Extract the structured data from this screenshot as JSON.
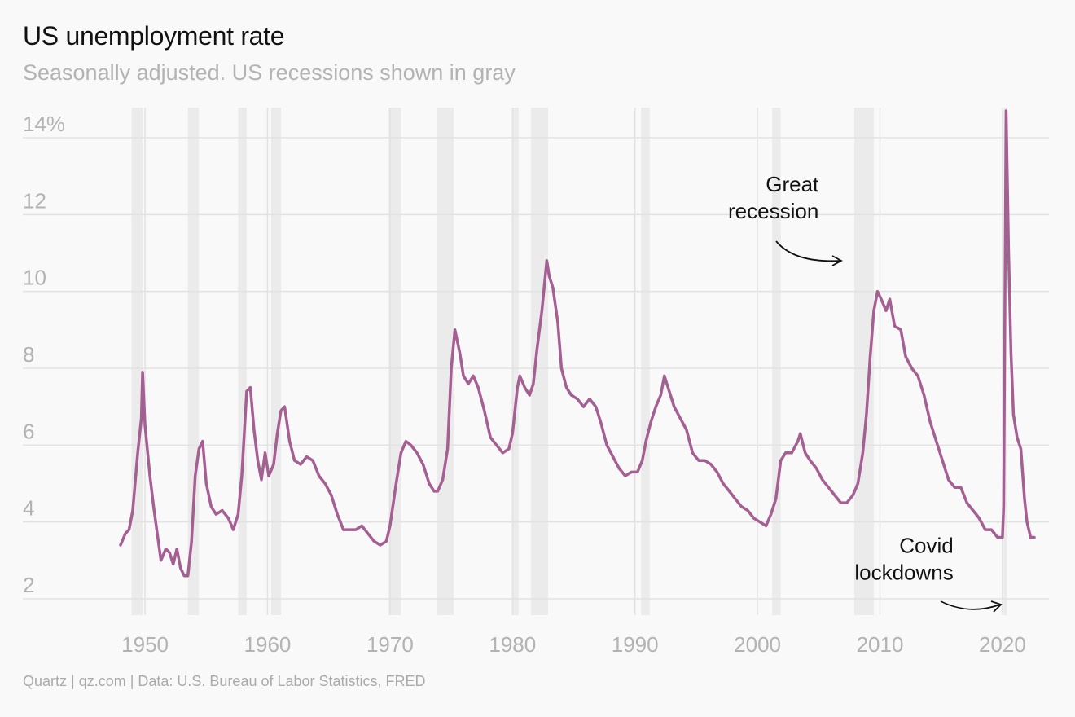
{
  "chart_data": {
    "type": "line",
    "title": "US unemployment rate",
    "subtitle": "Seasonally adjusted. US recessions shown in gray",
    "source": "Quartz | qz.com | Data: U.S. Bureau of Labor Statistics, FRED",
    "xlabel": "",
    "ylabel": "",
    "xlim": [
      1948,
      2022.6
    ],
    "ylim": [
      2,
      14
    ],
    "x_ticks": [
      1950,
      1960,
      1970,
      1980,
      1990,
      2000,
      2010,
      2020
    ],
    "y_ticks": [
      {
        "value": 2,
        "label": "2"
      },
      {
        "value": 4,
        "label": "4"
      },
      {
        "value": 6,
        "label": "6"
      },
      {
        "value": 8,
        "label": "8"
      },
      {
        "value": 10,
        "label": "10"
      },
      {
        "value": 12,
        "label": "12"
      },
      {
        "value": 14,
        "label": "14%"
      }
    ],
    "grid": true,
    "line_color": "#a55f93",
    "recession_color": "#ebebeb",
    "recessions": [
      [
        1948.9,
        1949.8
      ],
      [
        1953.5,
        1954.4
      ],
      [
        1957.6,
        1958.3
      ],
      [
        1960.3,
        1961.1
      ],
      [
        1969.9,
        1970.9
      ],
      [
        1973.8,
        1975.2
      ],
      [
        1980.0,
        1980.5
      ],
      [
        1981.5,
        1982.9
      ],
      [
        1990.5,
        1991.2
      ],
      [
        2001.2,
        2001.9
      ],
      [
        2007.9,
        2009.5
      ],
      [
        2020.1,
        2020.3
      ]
    ],
    "series": [
      {
        "points": [
          [
            1948.0,
            3.4
          ],
          [
            1948.4,
            3.7
          ],
          [
            1948.7,
            3.8
          ],
          [
            1949.0,
            4.3
          ],
          [
            1949.4,
            5.8
          ],
          [
            1949.7,
            6.7
          ],
          [
            1949.8,
            7.9
          ],
          [
            1950.0,
            6.5
          ],
          [
            1950.4,
            5.2
          ],
          [
            1950.7,
            4.4
          ],
          [
            1951.0,
            3.7
          ],
          [
            1951.3,
            3.0
          ],
          [
            1951.7,
            3.3
          ],
          [
            1952.0,
            3.2
          ],
          [
            1952.3,
            2.9
          ],
          [
            1952.6,
            3.3
          ],
          [
            1952.9,
            2.8
          ],
          [
            1953.2,
            2.6
          ],
          [
            1953.5,
            2.6
          ],
          [
            1953.8,
            3.5
          ],
          [
            1954.1,
            5.2
          ],
          [
            1954.4,
            5.9
          ],
          [
            1954.7,
            6.1
          ],
          [
            1955.0,
            5.0
          ],
          [
            1955.4,
            4.4
          ],
          [
            1955.8,
            4.2
          ],
          [
            1956.3,
            4.3
          ],
          [
            1956.8,
            4.1
          ],
          [
            1957.2,
            3.8
          ],
          [
            1957.6,
            4.2
          ],
          [
            1957.9,
            5.2
          ],
          [
            1958.3,
            7.4
          ],
          [
            1958.6,
            7.5
          ],
          [
            1958.9,
            6.4
          ],
          [
            1959.2,
            5.6
          ],
          [
            1959.5,
            5.1
          ],
          [
            1959.8,
            5.8
          ],
          [
            1960.1,
            5.2
          ],
          [
            1960.5,
            5.5
          ],
          [
            1960.8,
            6.3
          ],
          [
            1961.1,
            6.9
          ],
          [
            1961.4,
            7.0
          ],
          [
            1961.8,
            6.1
          ],
          [
            1962.2,
            5.6
          ],
          [
            1962.7,
            5.5
          ],
          [
            1963.2,
            5.7
          ],
          [
            1963.7,
            5.6
          ],
          [
            1964.2,
            5.2
          ],
          [
            1964.7,
            5.0
          ],
          [
            1965.2,
            4.7
          ],
          [
            1965.7,
            4.2
          ],
          [
            1966.2,
            3.8
          ],
          [
            1966.7,
            3.8
          ],
          [
            1967.2,
            3.8
          ],
          [
            1967.7,
            3.9
          ],
          [
            1968.2,
            3.7
          ],
          [
            1968.7,
            3.5
          ],
          [
            1969.2,
            3.4
          ],
          [
            1969.7,
            3.5
          ],
          [
            1970.0,
            3.9
          ],
          [
            1970.5,
            5.0
          ],
          [
            1970.9,
            5.8
          ],
          [
            1971.3,
            6.1
          ],
          [
            1971.7,
            6.0
          ],
          [
            1972.2,
            5.8
          ],
          [
            1972.7,
            5.5
          ],
          [
            1973.2,
            5.0
          ],
          [
            1973.6,
            4.8
          ],
          [
            1973.9,
            4.8
          ],
          [
            1974.3,
            5.1
          ],
          [
            1974.7,
            5.9
          ],
          [
            1975.0,
            8.0
          ],
          [
            1975.3,
            9.0
          ],
          [
            1975.7,
            8.4
          ],
          [
            1976.0,
            7.8
          ],
          [
            1976.4,
            7.6
          ],
          [
            1976.8,
            7.8
          ],
          [
            1977.2,
            7.5
          ],
          [
            1977.7,
            6.9
          ],
          [
            1978.2,
            6.2
          ],
          [
            1978.7,
            6.0
          ],
          [
            1979.2,
            5.8
          ],
          [
            1979.7,
            5.9
          ],
          [
            1980.0,
            6.3
          ],
          [
            1980.4,
            7.5
          ],
          [
            1980.6,
            7.8
          ],
          [
            1981.0,
            7.5
          ],
          [
            1981.4,
            7.3
          ],
          [
            1981.7,
            7.6
          ],
          [
            1982.0,
            8.5
          ],
          [
            1982.4,
            9.5
          ],
          [
            1982.8,
            10.8
          ],
          [
            1983.0,
            10.4
          ],
          [
            1983.3,
            10.1
          ],
          [
            1983.7,
            9.2
          ],
          [
            1984.0,
            8.0
          ],
          [
            1984.4,
            7.5
          ],
          [
            1984.8,
            7.3
          ],
          [
            1985.3,
            7.2
          ],
          [
            1985.8,
            7.0
          ],
          [
            1986.3,
            7.2
          ],
          [
            1986.8,
            7.0
          ],
          [
            1987.2,
            6.6
          ],
          [
            1987.7,
            6.0
          ],
          [
            1988.2,
            5.7
          ],
          [
            1988.7,
            5.4
          ],
          [
            1989.2,
            5.2
          ],
          [
            1989.7,
            5.3
          ],
          [
            1990.2,
            5.3
          ],
          [
            1990.6,
            5.6
          ],
          [
            1990.9,
            6.1
          ],
          [
            1991.3,
            6.6
          ],
          [
            1991.7,
            7.0
          ],
          [
            1992.1,
            7.3
          ],
          [
            1992.4,
            7.8
          ],
          [
            1992.8,
            7.4
          ],
          [
            1993.2,
            7.0
          ],
          [
            1993.7,
            6.7
          ],
          [
            1994.2,
            6.4
          ],
          [
            1994.7,
            5.8
          ],
          [
            1995.2,
            5.6
          ],
          [
            1995.7,
            5.6
          ],
          [
            1996.2,
            5.5
          ],
          [
            1996.7,
            5.3
          ],
          [
            1997.2,
            5.0
          ],
          [
            1997.7,
            4.8
          ],
          [
            1998.2,
            4.6
          ],
          [
            1998.7,
            4.4
          ],
          [
            1999.2,
            4.3
          ],
          [
            1999.7,
            4.1
          ],
          [
            2000.2,
            4.0
          ],
          [
            2000.7,
            3.9
          ],
          [
            2001.1,
            4.2
          ],
          [
            2001.5,
            4.6
          ],
          [
            2001.9,
            5.6
          ],
          [
            2002.3,
            5.8
          ],
          [
            2002.8,
            5.8
          ],
          [
            2003.3,
            6.1
          ],
          [
            2003.5,
            6.3
          ],
          [
            2003.9,
            5.8
          ],
          [
            2004.3,
            5.6
          ],
          [
            2004.8,
            5.4
          ],
          [
            2005.3,
            5.1
          ],
          [
            2005.8,
            4.9
          ],
          [
            2006.3,
            4.7
          ],
          [
            2006.8,
            4.5
          ],
          [
            2007.3,
            4.5
          ],
          [
            2007.8,
            4.7
          ],
          [
            2008.2,
            5.0
          ],
          [
            2008.6,
            5.8
          ],
          [
            2008.9,
            6.8
          ],
          [
            2009.2,
            8.3
          ],
          [
            2009.5,
            9.5
          ],
          [
            2009.8,
            10.0
          ],
          [
            2010.1,
            9.8
          ],
          [
            2010.5,
            9.5
          ],
          [
            2010.8,
            9.8
          ],
          [
            2011.2,
            9.1
          ],
          [
            2011.7,
            9.0
          ],
          [
            2012.1,
            8.3
          ],
          [
            2012.6,
            8.0
          ],
          [
            2013.1,
            7.8
          ],
          [
            2013.6,
            7.3
          ],
          [
            2014.1,
            6.6
          ],
          [
            2014.6,
            6.1
          ],
          [
            2015.1,
            5.6
          ],
          [
            2015.6,
            5.1
          ],
          [
            2016.1,
            4.9
          ],
          [
            2016.6,
            4.9
          ],
          [
            2017.1,
            4.5
          ],
          [
            2017.6,
            4.3
          ],
          [
            2018.1,
            4.1
          ],
          [
            2018.6,
            3.8
          ],
          [
            2019.1,
            3.8
          ],
          [
            2019.6,
            3.6
          ],
          [
            2020.0,
            3.6
          ],
          [
            2020.1,
            4.4
          ],
          [
            2020.3,
            14.7
          ],
          [
            2020.5,
            11.1
          ],
          [
            2020.7,
            8.4
          ],
          [
            2020.9,
            6.8
          ],
          [
            2021.2,
            6.2
          ],
          [
            2021.5,
            5.9
          ],
          [
            2021.8,
            4.6
          ],
          [
            2022.0,
            4.0
          ],
          [
            2022.3,
            3.6
          ],
          [
            2022.6,
            3.6
          ]
        ]
      }
    ],
    "annotations": [
      {
        "lines": [
          "Great",
          "recession"
        ],
        "x": 2005.0,
        "y": 12.6
      },
      {
        "lines": [
          "Covid",
          "lockdowns"
        ],
        "x": 2016.0,
        "y": 3.2
      }
    ]
  }
}
